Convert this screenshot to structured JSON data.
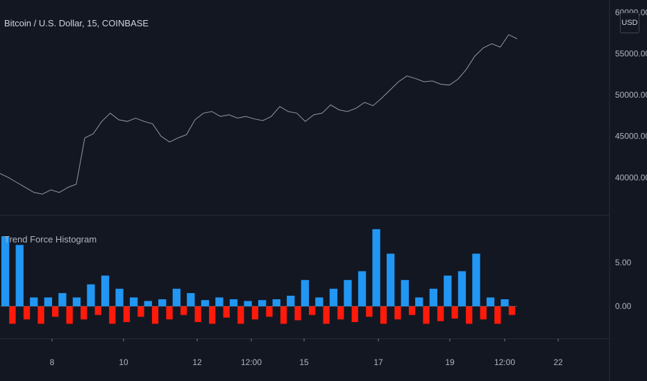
{
  "header": {
    "symbol_title": "Bitcoin / U.S. Dollar, 15, COINBASE",
    "currency_button": "USD"
  },
  "indicator": {
    "title": "Trend Force Histogram"
  },
  "colors": {
    "background": "#131722",
    "price_line": "#9598a1",
    "positive": "#2196f3",
    "negative": "#ff1a0a",
    "axis_text": "#b2b5be",
    "grid": "#2a2e39"
  },
  "chart_data": [
    {
      "type": "line",
      "title": "Bitcoin / U.S. Dollar, 15, COINBASE",
      "x_tick_labels": [
        "8",
        "10",
        "12",
        "12:00",
        "15",
        "17",
        "19",
        "12:00",
        "22"
      ],
      "y_tick_labels": [
        "40000.00",
        "45000.00",
        "50000.00",
        "55000.00",
        "60000.00"
      ],
      "ylim": [
        36000,
        61000
      ],
      "series": [
        {
          "values": [
            40500,
            40000,
            39400,
            38800,
            38200,
            38000,
            38500,
            38200,
            38800,
            39200,
            44800,
            45300,
            46800,
            47800,
            47000,
            46800,
            47200,
            46800,
            46500,
            45000,
            44300,
            44800,
            45200,
            47000,
            47800,
            48000,
            47400,
            47600,
            47200,
            47400,
            47100,
            46900,
            47400,
            48600,
            48000,
            47800,
            46800,
            47600,
            47800,
            48800,
            48200,
            48000,
            48400,
            49100,
            48700,
            49600,
            50600,
            51600,
            52300,
            52000,
            51600,
            51700,
            51300,
            51200,
            51900,
            53100,
            54700,
            55700,
            56200,
            55800,
            57300,
            56800
          ]
        }
      ]
    },
    {
      "type": "bar",
      "title": "Trend Force Histogram",
      "y_tick_labels": [
        "0.00",
        "5.00"
      ],
      "ylim": [
        -3,
        9.5
      ],
      "positive_values": [
        8.0,
        7.0,
        1.0,
        1.0,
        1.5,
        1.0,
        2.5,
        3.5,
        2.0,
        1.0,
        0.6,
        0.8,
        2.0,
        1.5,
        0.7,
        1.0,
        0.8,
        0.6,
        0.7,
        0.8,
        1.2,
        3.0,
        1.0,
        2.0,
        3.0,
        4.0,
        8.8,
        6.0,
        3.0,
        1.0,
        2.0,
        3.5,
        4.0,
        6.0,
        1.0,
        0.8
      ],
      "negative_values": [
        -2.0,
        -1.5,
        -2.0,
        -1.2,
        -2.0,
        -1.5,
        -1.0,
        -2.0,
        -1.8,
        -1.2,
        -2.0,
        -1.5,
        -1.0,
        -1.8,
        -2.0,
        -1.3,
        -2.0,
        -1.5,
        -1.2,
        -2.0,
        -1.6,
        -1.0,
        -2.0,
        -1.5,
        -1.8,
        -1.2,
        -2.0,
        -1.5,
        -1.0,
        -2.0,
        -1.7,
        -1.4,
        -2.0,
        -1.5,
        -2.0,
        -1.0
      ]
    }
  ]
}
